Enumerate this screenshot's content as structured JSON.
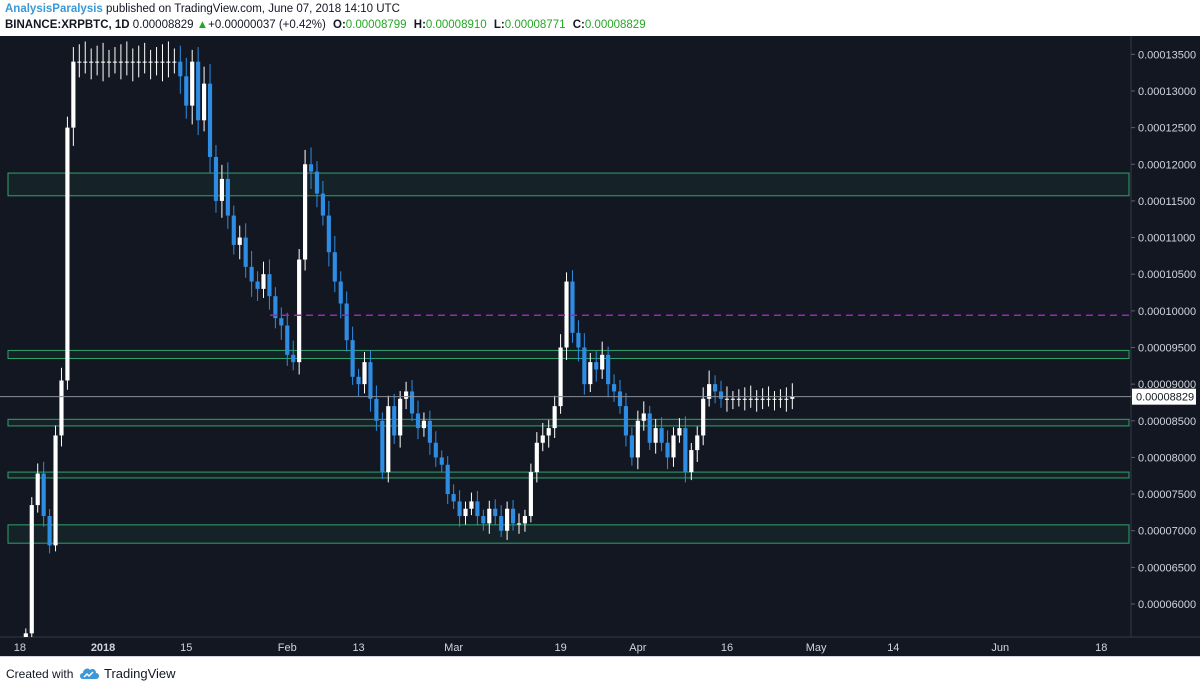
{
  "header": {
    "author": "AnalysisParalysis",
    "published_text": " published on TradingView.com, June 07, 2018 14:10 UTC",
    "symbol": "BINANCE:XRPBTC, 1D",
    "last_price": "0.00008829",
    "up_arrow": "▲",
    "change": "+0.00000037 (+0.42%)",
    "open_label": "O:",
    "open": "0.00008799",
    "high_label": "H:",
    "high": "0.00008910",
    "low_label": "L:",
    "low": "0.00008771",
    "close_label": "C:",
    "close": "0.00008829"
  },
  "footer": {
    "created_with": "Created with",
    "brand": "TradingView"
  },
  "colors": {
    "background": "#131722",
    "bull": "#ffffff",
    "bear": "#2e8de3",
    "zone": "#2ea36b",
    "resistance": "#9c27b0",
    "axis_text": "#d1d4dc",
    "last_price_line": "#8a8e97"
  },
  "chart_data": {
    "type": "candlestick",
    "symbol": "BINANCE:XRPBTC",
    "interval": "1D",
    "ylim": [
      5.55e-05,
      0.0001375
    ],
    "y_ticks": [
      "0.00013500",
      "0.00013000",
      "0.00012500",
      "0.00012000",
      "0.00011500",
      "0.00011000",
      "0.00010500",
      "0.00010000",
      "0.00009500",
      "0.00009000",
      "0.00008500",
      "0.00008000",
      "0.00007500",
      "0.00007000",
      "0.00006500",
      "0.00006000"
    ],
    "x_ticks": [
      {
        "label": "18",
        "date": "2017-12-18"
      },
      {
        "label": "2018",
        "date": "2018-01-01"
      },
      {
        "label": "15",
        "date": "2018-01-15"
      },
      {
        "label": "Feb",
        "date": "2018-02-01"
      },
      {
        "label": "13",
        "date": "2018-02-13"
      },
      {
        "label": "Mar",
        "date": "2018-03-01"
      },
      {
        "label": "19",
        "date": "2018-03-19"
      },
      {
        "label": "Apr",
        "date": "2018-04-01"
      },
      {
        "label": "16",
        "date": "2018-04-16"
      },
      {
        "label": "May",
        "date": "2018-05-01"
      },
      {
        "label": "14",
        "date": "2018-05-14"
      },
      {
        "label": "Jun",
        "date": "2018-06-01"
      },
      {
        "label": "18",
        "date": "2018-06-18"
      }
    ],
    "xlim": [
      "2017-12-16",
      "2018-06-23"
    ],
    "last_price": 8.829e-05,
    "last_price_label": "0.00008829",
    "start_date": "2017-12-19",
    "anchors": [
      [
        5.6e-05,
        7.35e-05,
        7.78e-05,
        7.2e-05,
        6.8e-05,
        8.3e-05,
        9.05e-05,
        0.000125,
        0.000134,
        0.000134,
        0.000134,
        0.000134,
        0.000134,
        0.000134,
        0.000134,
        0.000134,
        0.000134,
        0.000134,
        0.000134,
        0.000134,
        0.000134,
        0.000134,
        0.000134,
        0.000134,
        0.000134,
        0.000134
      ],
      [
        0.000132,
        0.000128,
        0.000134,
        0.000126,
        0.000131,
        0.000121,
        0.000115,
        0.000118,
        0.000113,
        0.000109,
        0.00011,
        0.000106,
        0.000104,
        0.000103,
        0.000105,
        0.000102,
        9.9e-05,
        9.8e-05,
        9.4e-05,
        9.3e-05,
        0.000107,
        0.00012,
        0.000119,
        0.000116,
        0.000113,
        0.000108
      ],
      [
        0.000104,
        0.000101,
        9.6e-05,
        9.1e-05,
        9e-05,
        9.3e-05,
        8.8e-05,
        8.5e-05,
        7.8e-05,
        8.7e-05,
        8.3e-05,
        8.8e-05,
        8.9e-05,
        8.6e-05,
        8.4e-05,
        8.5e-05,
        8.2e-05,
        8e-05,
        7.9e-05,
        7.5e-05,
        7.4e-05,
        7.2e-05,
        7.3e-05,
        7.4e-05,
        7.2e-05,
        7.1e-05
      ],
      [
        7.3e-05,
        7.2e-05,
        7e-05,
        7.3e-05,
        7.1e-05,
        7.1e-05,
        7.2e-05,
        7.8e-05,
        8.2e-05,
        8.3e-05,
        8.4e-05,
        8.7e-05,
        9.5e-05,
        0.000104,
        9.7e-05,
        9.5e-05,
        9e-05,
        9.3e-05,
        9.2e-05,
        9.4e-05,
        9e-05,
        8.9e-05,
        8.7e-05,
        8.3e-05,
        8e-05,
        8.5e-05
      ],
      [
        8.6e-05,
        8.2e-05,
        8.4e-05,
        8.2e-05,
        8e-05,
        8.3e-05,
        8.4e-05,
        7.8e-05,
        8.1e-05,
        8.3e-05,
        8.8e-05,
        9e-05,
        8.9e-05,
        8.8e-05,
        8.8e-05,
        8.8e-05,
        8.8e-05,
        8.8e-05,
        8.8e-05,
        8.8e-05,
        8.8e-05,
        8.8e-05,
        8.8e-05,
        8.8e-05,
        8.8e-05,
        8.83e-05
      ]
    ],
    "zones": [
      {
        "from": 0.0001157,
        "to": 0.0001188
      },
      {
        "from": 9.35e-05,
        "to": 9.46e-05
      },
      {
        "from": 8.43e-05,
        "to": 8.52e-05
      },
      {
        "from": 7.72e-05,
        "to": 7.8e-05
      },
      {
        "from": 6.83e-05,
        "to": 7.08e-05
      }
    ],
    "resistance_line": {
      "value": 9.94e-05,
      "style": "dashed"
    }
  }
}
